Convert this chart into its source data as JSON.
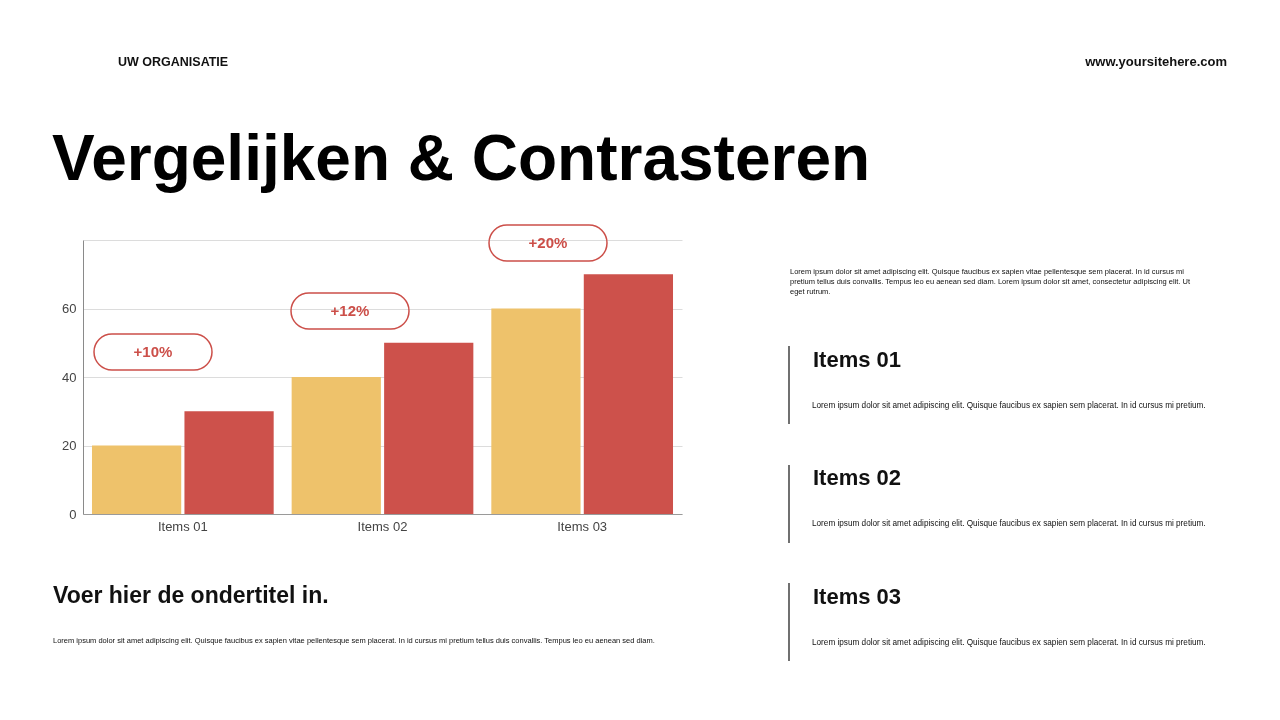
{
  "chart_data": {
    "type": "bar",
    "title": "Vergelijken & Contrasteren",
    "subtitle": "Voer hier de ondertitel in.",
    "categories": [
      "Items 01",
      "Items 02",
      "Items 03"
    ],
    "series": [
      {
        "color": "#eec26b",
        "values": [
          20,
          40,
          60
        ]
      },
      {
        "color": "#cd514b",
        "values": [
          30,
          50,
          70
        ]
      }
    ],
    "ylim": [
      0,
      80
    ],
    "yticks": [
      0,
      20,
      40,
      60,
      {
        "value": 80,
        "label": null
      }
    ],
    "grid": "y",
    "annotations": [
      "UW ORGANISATIE",
      "www.yoursitehere.com",
      "Lorem ipsum dolor sit amet adipiscing elit. Quisque faucibus ex sapien vitae pellentesque sem placerat. In id cursus mi pretium tellus duis convallis. Tempus leo eu aenean sed diam. Lorem ipsum dolor sit amet, consectetur adipiscing elit. Ut eget rutrum.",
      "Items 01",
      "Lorem ipsum dolor sit amet adipiscing elit. Quisque faucibus ex sapien sem placerat. In id cursus mi pretium.",
      "Items 02",
      "Lorem ipsum dolor sit amet adipiscing elit. Quisque faucibus ex sapien sem placerat. In id cursus mi pretium.",
      "Items 03",
      "Lorem ipsum dolor sit amet adipiscing elit. Quisque faucibus ex sapien sem placerat. In id cursus mi pretium.",
      "Lorem ipsum dolor sit amet adipiscing elit. Quisque faucibus ex sapien vitae pellentesque sem placerat. In id cursus mi pretium tellus duis convallis. Tempus leo eu aenean sed diam.",
      "+10%",
      "+12%",
      "+20%"
    ]
  }
}
